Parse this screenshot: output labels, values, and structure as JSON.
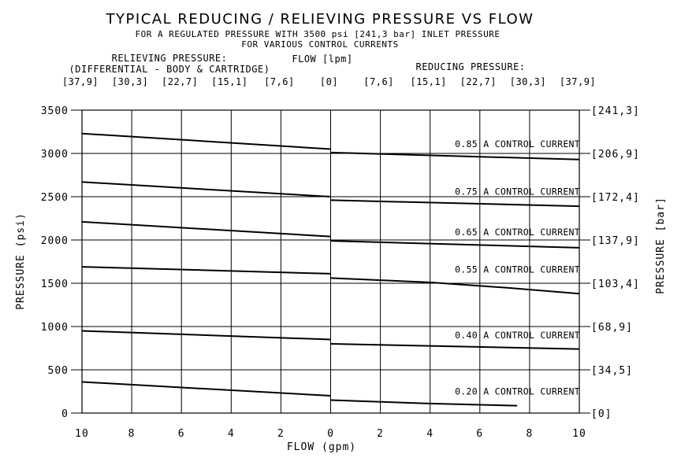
{
  "chart_data": {
    "type": "line",
    "title": "TYPICAL REDUCING / RELIEVING PRESSURE VS FLOW",
    "subtitle_1": "FOR A REGULATED PRESSURE WITH 3500 psi [241,3 bar] INLET PRESSURE",
    "subtitle_2": "FOR VARIOUS CONTROL CURRENTS",
    "relieving_label_1": "RELIEVING PRESSURE:",
    "relieving_label_2": "(DIFFERENTIAL - BODY & CARTRIDGE)",
    "reducing_label": "REDUCING PRESSURE:",
    "flow_lpm_label": "FLOW [lpm]",
    "lpm_ticks": [
      "[37,9]",
      "[30,3]",
      "[22,7]",
      "[15,1]",
      "[7,6]",
      "[0]",
      "[7,6]",
      "[15,1]",
      "[22,7]",
      "[30,3]",
      "[37,9]"
    ],
    "xlabel": "FLOW (gpm)",
    "ylabel": "PRESSURE (psi)",
    "ylabel_right": "PRESSURE [bar]",
    "x_tick_labels": [
      "10",
      "8",
      "6",
      "4",
      "2",
      "0",
      "2",
      "4",
      "6",
      "8",
      "10"
    ],
    "x_tick_values": [
      -10,
      -8,
      -6,
      -4,
      -2,
      0,
      2,
      4,
      6,
      8,
      10
    ],
    "xlim": [
      -10,
      10
    ],
    "ylim": [
      0,
      3500
    ],
    "y_ticks": [
      0,
      500,
      1000,
      1500,
      2000,
      2500,
      3000,
      3500
    ],
    "y_tick_labels": [
      "0",
      "500",
      "1000",
      "1500",
      "2000",
      "2500",
      "3000",
      "3500"
    ],
    "bar_ticks": [
      "[0]",
      "[34,5]",
      "[68,9]",
      "[103,4]",
      "[137,9]",
      "[172,4]",
      "[206,9]",
      "[241,3]"
    ],
    "bar_tick_values": [
      0,
      500,
      1000,
      1500,
      2000,
      2500,
      3000,
      3500
    ],
    "series": [
      {
        "name": "0.85 A CONTROL CURRENT",
        "relieving": [
          [
            -10,
            3230
          ],
          [
            0,
            3050
          ]
        ],
        "reducing": [
          [
            0,
            3010
          ],
          [
            10,
            2930
          ]
        ]
      },
      {
        "name": "0.75 A CONTROL CURRENT",
        "relieving": [
          [
            -10,
            2670
          ],
          [
            0,
            2500
          ]
        ],
        "reducing": [
          [
            0,
            2460
          ],
          [
            10,
            2390
          ]
        ]
      },
      {
        "name": "0.65 A CONTROL CURRENT",
        "relieving": [
          [
            -10,
            2210
          ],
          [
            0,
            2040
          ]
        ],
        "reducing": [
          [
            0,
            1990
          ],
          [
            10,
            1910
          ]
        ]
      },
      {
        "name": "0.55 A CONTROL CURRENT",
        "relieving": [
          [
            -10,
            1690
          ],
          [
            0,
            1610
          ]
        ],
        "reducing": [
          [
            0,
            1560
          ],
          [
            4,
            1510
          ],
          [
            7,
            1450
          ],
          [
            10,
            1380
          ]
        ]
      },
      {
        "name": "0.40 A CONTROL CURRENT",
        "relieving": [
          [
            -10,
            950
          ],
          [
            0,
            850
          ]
        ],
        "reducing": [
          [
            0,
            800
          ],
          [
            10,
            740
          ]
        ]
      },
      {
        "name": "0.20 A CONTROL CURRENT",
        "relieving": [
          [
            -10,
            360
          ],
          [
            0,
            200
          ]
        ],
        "reducing": [
          [
            0,
            150
          ],
          [
            4,
            110
          ],
          [
            7.5,
            85
          ]
        ]
      }
    ]
  }
}
